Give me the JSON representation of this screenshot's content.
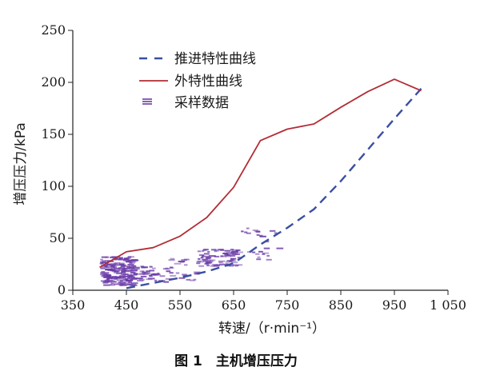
{
  "figure": {
    "caption": "图 1　主机增压压力"
  },
  "chart_data": {
    "type": "line",
    "xlabel": "转速/（r·min⁻¹）",
    "ylabel": "增压压力/kPa",
    "xlim": [
      350,
      1050
    ],
    "ylim": [
      0,
      250
    ],
    "x_ticks": [
      350,
      450,
      550,
      650,
      750,
      850,
      950,
      1050
    ],
    "x_tick_labels": [
      "350",
      "450",
      "550",
      "650",
      "750",
      "850",
      "950",
      "1 050"
    ],
    "y_ticks": [
      0,
      50,
      100,
      150,
      200,
      250
    ],
    "y_tick_labels": [
      "0",
      "50",
      "100",
      "150",
      "200",
      "250"
    ],
    "legend_position": "top-left",
    "series": [
      {
        "name": "推进特性曲线",
        "style": "dashed",
        "color": "#3a4fa0",
        "x": [
          450,
          500,
          550,
          600,
          650,
          700,
          750,
          800,
          850,
          900,
          950,
          1000
        ],
        "y": [
          2,
          7,
          12,
          18,
          26,
          44,
          60,
          78,
          105,
          135,
          165,
          194
        ]
      },
      {
        "name": "外特性曲线",
        "style": "solid",
        "color": "#b22d35",
        "x": [
          400,
          450,
          500,
          550,
          600,
          650,
          700,
          750,
          800,
          850,
          900,
          950,
          1000
        ],
        "y": [
          22,
          37,
          41,
          52,
          70,
          99,
          144,
          155,
          160,
          176,
          191,
          203,
          192
        ]
      },
      {
        "name": "采样数据",
        "style": "scatter",
        "color": "#6a3aa8",
        "clusters": [
          {
            "x_min": 400,
            "x_max": 460,
            "y_min": 5,
            "y_max": 33,
            "count": 220
          },
          {
            "x_min": 460,
            "x_max": 520,
            "y_min": 8,
            "y_max": 24,
            "count": 40
          },
          {
            "x_min": 520,
            "x_max": 580,
            "y_min": 10,
            "y_max": 32,
            "count": 25
          },
          {
            "x_min": 580,
            "x_max": 660,
            "y_min": 24,
            "y_max": 40,
            "count": 90
          },
          {
            "x_min": 660,
            "x_max": 730,
            "y_min": 30,
            "y_max": 62,
            "count": 25
          }
        ]
      }
    ]
  }
}
